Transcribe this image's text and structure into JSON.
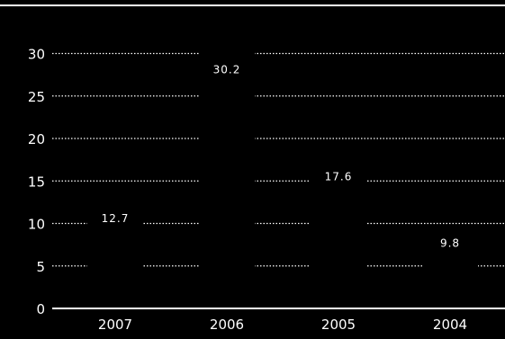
{
  "chart_data": {
    "type": "bar",
    "categories": [
      "2007",
      "2006",
      "2005",
      "2004"
    ],
    "values": [
      12.7,
      30.2,
      17.6,
      9.8
    ],
    "value_labels": [
      "12.7",
      "30.2",
      "17.6",
      "9.8"
    ],
    "y_ticks": [
      "0",
      "5",
      "10",
      "15",
      "20",
      "25",
      "30"
    ],
    "ylim": [
      0,
      33
    ],
    "grid": "dotted horizontal",
    "colors": {
      "background": "#000000",
      "bars": "#000000",
      "text": "#ffffff",
      "grid": "#ffffff",
      "axis": "#ffffff"
    }
  }
}
